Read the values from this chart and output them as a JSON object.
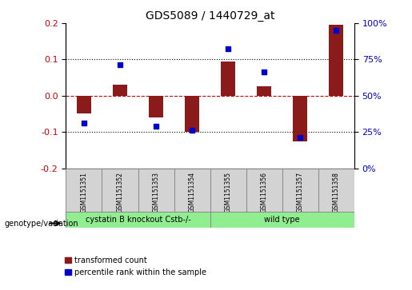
{
  "title": "GDS5089 / 1440729_at",
  "samples": [
    "GSM1151351",
    "GSM1151352",
    "GSM1151353",
    "GSM1151354",
    "GSM1151355",
    "GSM1151356",
    "GSM1151357",
    "GSM1151358"
  ],
  "red_values": [
    -0.05,
    0.03,
    -0.06,
    -0.1,
    0.095,
    0.025,
    -0.125,
    0.195
  ],
  "blue_values": [
    -0.075,
    0.085,
    -0.085,
    -0.095,
    0.13,
    0.065,
    -0.115,
    0.18
  ],
  "ylim": [
    -0.2,
    0.2
  ],
  "yticks_left": [
    -0.2,
    -0.1,
    0.0,
    0.1,
    0.2
  ],
  "yticks_right": [
    0,
    25,
    50,
    75,
    100
  ],
  "left_color": "#CC0000",
  "right_color": "#0000CC",
  "bar_color": "#8B1A1A",
  "dot_color": "#0000CC",
  "grid_lines": [
    -0.1,
    0.0,
    0.1
  ],
  "groups": [
    {
      "label": "cystatin B knockout Cstb-/-",
      "start": 0,
      "end": 4,
      "color": "#90EE90"
    },
    {
      "label": "wild type",
      "start": 4,
      "end": 8,
      "color": "#90EE90"
    }
  ],
  "genotype_label": "genotype/variation",
  "legend_red": "transformed count",
  "legend_blue": "percentile rank within the sample",
  "background_color": "#ffffff",
  "bar_width": 0.4
}
